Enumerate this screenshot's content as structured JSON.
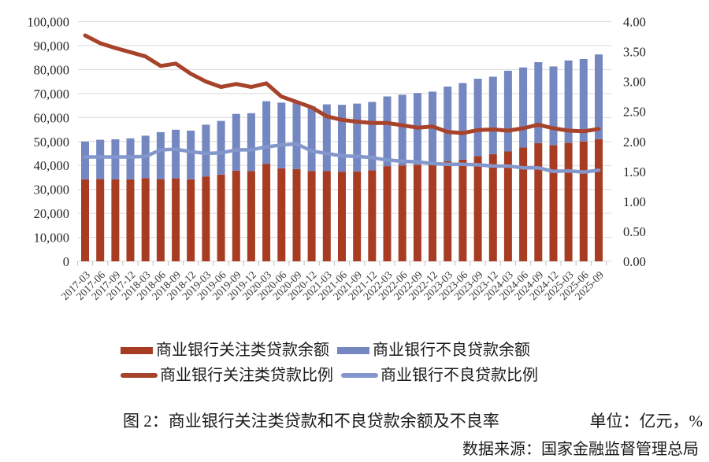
{
  "chart_data": {
    "type": "bar",
    "subtype": "stacked-bars-with-lines-combo",
    "title": "图 2：商业银行关注类贷款和不良贷款余额及不良率",
    "unit_label": "单位：亿元，%",
    "source": "数据来源：国家金融监督管理总局",
    "grid": true,
    "legend_position": "bottom",
    "categories": [
      "2017-03",
      "2017-06",
      "2017-09",
      "2017-12",
      "2018-03",
      "2018-06",
      "2018-09",
      "2018-12",
      "2019-03",
      "2019-06",
      "2019-09",
      "2019-12",
      "2020-03",
      "2020-06",
      "2020-09",
      "2020-12",
      "2021-03",
      "2021-06",
      "2021-09",
      "2021-12",
      "2022-03",
      "2022-06",
      "2022-09",
      "2022-12",
      "2023-03",
      "2023-06",
      "2023-09",
      "2023-12",
      "2024-03",
      "2024-06",
      "2024-09",
      "2024-12",
      "2025-03",
      "2025-06",
      "2025-09"
    ],
    "bar_series": [
      {
        "name": "商业银行关注类贷款余额",
        "axis": "left",
        "color": "#A83C22",
        "stack": "balance",
        "values": [
          34200,
          34300,
          34200,
          34200,
          34700,
          34300,
          34600,
          34200,
          35400,
          36200,
          37800,
          37700,
          40700,
          38800,
          38500,
          37700,
          37600,
          37400,
          37500,
          38000,
          39700,
          40000,
          40300,
          41000,
          41700,
          42400,
          43900,
          44700,
          45800,
          47500,
          49300,
          48500,
          49400,
          50000,
          51000
        ]
      },
      {
        "name": "商业银行不良贷款余额",
        "axis": "left",
        "color": "#7587C1",
        "stack": "balance",
        "values": [
          15800,
          16400,
          16700,
          17100,
          17700,
          19600,
          20300,
          20300,
          21600,
          22400,
          23700,
          24100,
          26100,
          27400,
          28300,
          27000,
          27900,
          27900,
          28300,
          28500,
          29100,
          29500,
          29900,
          29800,
          31200,
          32000,
          32300,
          32300,
          33700,
          33400,
          33800,
          32800,
          34400,
          34400,
          35300
        ]
      }
    ],
    "line_series": [
      {
        "name": "商业银行关注类贷款比例",
        "axis": "right",
        "color": "#A8432B",
        "values": [
          3.77,
          3.64,
          3.56,
          3.49,
          3.42,
          3.26,
          3.3,
          3.13,
          3.0,
          2.91,
          2.96,
          2.91,
          2.97,
          2.75,
          2.66,
          2.57,
          2.42,
          2.36,
          2.33,
          2.31,
          2.31,
          2.27,
          2.23,
          2.25,
          2.16,
          2.14,
          2.19,
          2.2,
          2.18,
          2.22,
          2.28,
          2.22,
          2.18,
          2.17,
          2.21
        ]
      },
      {
        "name": "商业银行不良贷款比例",
        "axis": "right",
        "color": "#8497CC",
        "values": [
          1.74,
          1.74,
          1.74,
          1.74,
          1.75,
          1.86,
          1.87,
          1.83,
          1.8,
          1.81,
          1.86,
          1.86,
          1.91,
          1.94,
          1.96,
          1.84,
          1.8,
          1.76,
          1.75,
          1.73,
          1.69,
          1.67,
          1.66,
          1.63,
          1.62,
          1.62,
          1.61,
          1.59,
          1.59,
          1.56,
          1.56,
          1.5,
          1.51,
          1.49,
          1.52
        ]
      }
    ],
    "left_axis": {
      "min": 0,
      "max": 100000,
      "step": 10000,
      "tick_labels": [
        "0",
        "10,000",
        "20,000",
        "30,000",
        "40,000",
        "50,000",
        "60,000",
        "70,000",
        "80,000",
        "90,000",
        "100,000"
      ]
    },
    "right_axis": {
      "min": 0.0,
      "max": 4.0,
      "step": 0.5,
      "tick_labels": [
        "0.00",
        "0.50",
        "1.00",
        "1.50",
        "2.00",
        "2.50",
        "3.00",
        "3.50",
        "4.00"
      ]
    },
    "legend": [
      {
        "label": "商业银行关注类贷款余额",
        "color": "#A83C22",
        "marker": "bar"
      },
      {
        "label": "商业银行不良贷款余额",
        "color": "#7587C1",
        "marker": "bar"
      },
      {
        "label": "商业银行关注类贷款比例",
        "color": "#A8432B",
        "marker": "line"
      },
      {
        "label": "商业银行不良贷款比例",
        "color": "#8497CC",
        "marker": "line"
      }
    ]
  }
}
